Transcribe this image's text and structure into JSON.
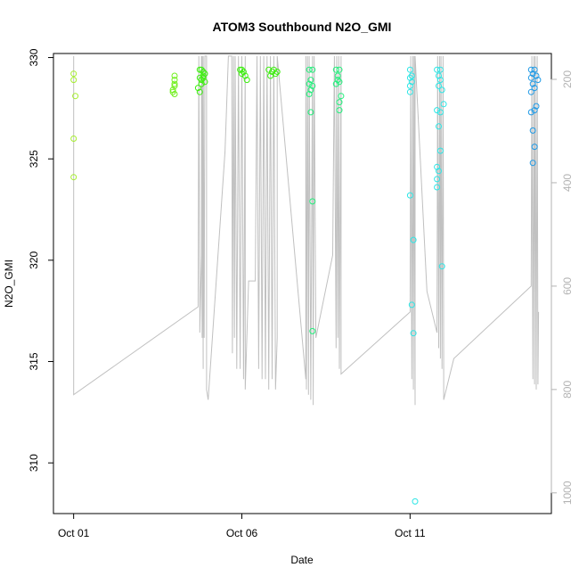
{
  "chart_data": {
    "type": "scatter",
    "title": "ATOM3 Southbound N2O_GMI",
    "xlabel": "Date",
    "ylabel": "N2O_GMI",
    "x_ticks": [
      {
        "label": "Oct 01",
        "value": 0
      },
      {
        "label": "Oct 06",
        "value": 5
      },
      {
        "label": "Oct 11",
        "value": 10
      }
    ],
    "xlim": [
      -0.6,
      14.2
    ],
    "ylim": [
      307.5,
      330.2
    ],
    "y_ticks": [
      310,
      315,
      320,
      325,
      330
    ],
    "y2_label": "",
    "y2_ticks": [
      200,
      400,
      600,
      800,
      1000
    ],
    "y2lim": [
      1040,
      150
    ],
    "colors": {
      "pressure_line": "#c0c0c0",
      "axis": "#000000",
      "right_axis": "#b3b3b3"
    },
    "series": [
      {
        "color": "#a6ef2e",
        "points": [
          [
            0.0,
            329.2
          ],
          [
            0.0,
            328.9
          ],
          [
            0.05,
            328.1
          ],
          [
            0.0,
            326.0
          ],
          [
            0.0,
            324.1
          ]
        ]
      },
      {
        "color": "#70ef1c",
        "points": [
          [
            3.0,
            329.1
          ],
          [
            3.0,
            328.9
          ],
          [
            3.0,
            328.7
          ],
          [
            3.0,
            328.6
          ],
          [
            2.95,
            328.4
          ],
          [
            2.95,
            328.3
          ],
          [
            3.0,
            328.2
          ]
        ]
      },
      {
        "color": "#3cf00e",
        "points": [
          [
            3.75,
            329.4
          ],
          [
            3.8,
            329.4
          ],
          [
            3.85,
            329.3
          ],
          [
            3.9,
            329.2
          ],
          [
            3.75,
            329.0
          ],
          [
            3.85,
            329.0
          ],
          [
            3.8,
            328.9
          ],
          [
            3.9,
            328.8
          ],
          [
            3.7,
            328.5
          ],
          [
            3.75,
            328.3
          ],
          [
            3.8,
            328.7
          ],
          [
            3.85,
            329.1
          ],
          [
            4.95,
            329.4
          ],
          [
            5.05,
            329.3
          ],
          [
            5.0,
            329.2
          ],
          [
            5.1,
            329.1
          ],
          [
            5.0,
            329.4
          ],
          [
            5.15,
            328.9
          ],
          [
            5.8,
            329.4
          ],
          [
            5.9,
            329.3
          ],
          [
            6.0,
            329.2
          ],
          [
            5.85,
            329.1
          ],
          [
            5.95,
            329.4
          ],
          [
            6.05,
            329.3
          ]
        ]
      },
      {
        "color": "#23f07c",
        "points": [
          [
            7.0,
            329.4
          ],
          [
            7.1,
            329.4
          ],
          [
            7.05,
            328.9
          ],
          [
            7.0,
            328.7
          ],
          [
            7.1,
            328.6
          ],
          [
            7.05,
            328.4
          ],
          [
            7.0,
            328.2
          ],
          [
            7.05,
            327.3
          ],
          [
            7.1,
            322.9
          ],
          [
            7.1,
            316.5
          ],
          [
            7.8,
            329.4
          ],
          [
            7.9,
            329.4
          ],
          [
            7.85,
            329.1
          ],
          [
            7.85,
            328.9
          ],
          [
            7.9,
            328.8
          ],
          [
            7.8,
            328.7
          ],
          [
            7.95,
            328.1
          ],
          [
            7.9,
            327.8
          ],
          [
            7.9,
            327.4
          ]
        ]
      },
      {
        "color": "#2ce6e6",
        "points": [
          [
            10.0,
            329.4
          ],
          [
            10.05,
            329.1
          ],
          [
            10.0,
            329.0
          ],
          [
            10.05,
            328.8
          ],
          [
            10.0,
            328.6
          ],
          [
            10.0,
            328.3
          ],
          [
            10.0,
            323.2
          ],
          [
            10.1,
            321.0
          ],
          [
            10.05,
            317.8
          ],
          [
            10.1,
            316.4
          ],
          [
            10.15,
            308.1
          ],
          [
            10.8,
            329.4
          ],
          [
            10.9,
            329.4
          ],
          [
            10.85,
            329.1
          ],
          [
            10.9,
            328.9
          ],
          [
            10.85,
            328.6
          ],
          [
            10.95,
            328.4
          ],
          [
            11.0,
            327.7
          ],
          [
            10.8,
            327.4
          ],
          [
            10.9,
            327.3
          ],
          [
            10.85,
            326.6
          ],
          [
            10.9,
            325.4
          ],
          [
            10.8,
            324.6
          ],
          [
            10.85,
            324.4
          ],
          [
            10.8,
            324.0
          ],
          [
            10.8,
            323.6
          ],
          [
            10.95,
            319.7
          ]
        ]
      },
      {
        "color": "#1f9ae6",
        "points": [
          [
            13.6,
            329.4
          ],
          [
            13.7,
            329.4
          ],
          [
            13.65,
            329.2
          ],
          [
            13.75,
            329.1
          ],
          [
            13.6,
            329.0
          ],
          [
            13.8,
            328.9
          ],
          [
            13.65,
            328.7
          ],
          [
            13.7,
            328.5
          ],
          [
            13.6,
            328.3
          ],
          [
            13.75,
            327.6
          ],
          [
            13.7,
            327.4
          ],
          [
            13.6,
            327.3
          ],
          [
            13.65,
            326.4
          ],
          [
            13.7,
            325.6
          ],
          [
            13.65,
            324.8
          ]
        ]
      }
    ],
    "pressure_line": [
      [
        0.0,
        155
      ],
      [
        0.0,
        810
      ],
      [
        3.7,
        640
      ],
      [
        3.72,
        155
      ],
      [
        3.72,
        155
      ],
      [
        3.75,
        620
      ],
      [
        3.75,
        690
      ],
      [
        3.8,
        540
      ],
      [
        3.8,
        155
      ],
      [
        3.82,
        700
      ],
      [
        3.82,
        155
      ],
      [
        3.85,
        760
      ],
      [
        3.85,
        155
      ],
      [
        3.88,
        700
      ],
      [
        3.9,
        155
      ],
      [
        3.95,
        155
      ],
      [
        3.95,
        800
      ],
      [
        4.0,
        820
      ],
      [
        4.5,
        340
      ],
      [
        4.6,
        155
      ],
      [
        4.7,
        155
      ],
      [
        4.72,
        730
      ],
      [
        4.75,
        155
      ],
      [
        4.78,
        700
      ],
      [
        4.8,
        155
      ],
      [
        4.85,
        760
      ],
      [
        4.9,
        155
      ],
      [
        4.95,
        760
      ],
      [
        5.0,
        155
      ],
      [
        5.05,
        780
      ],
      [
        5.1,
        155
      ],
      [
        5.1,
        800
      ],
      [
        5.2,
        590
      ],
      [
        5.4,
        590
      ],
      [
        5.45,
        155
      ],
      [
        5.5,
        760
      ],
      [
        5.55,
        155
      ],
      [
        5.6,
        780
      ],
      [
        5.65,
        155
      ],
      [
        5.7,
        780
      ],
      [
        5.75,
        155
      ],
      [
        5.8,
        800
      ],
      [
        5.85,
        155
      ],
      [
        5.9,
        780
      ],
      [
        5.95,
        155
      ],
      [
        6.0,
        800
      ],
      [
        6.05,
        700
      ],
      [
        6.05,
        155
      ],
      [
        6.9,
        780
      ],
      [
        6.9,
        155
      ],
      [
        6.92,
        800
      ],
      [
        6.95,
        155
      ],
      [
        6.98,
        810
      ],
      [
        7.0,
        155
      ],
      [
        7.05,
        820
      ],
      [
        7.1,
        155
      ],
      [
        7.12,
        830
      ],
      [
        7.15,
        155
      ],
      [
        7.2,
        700
      ],
      [
        7.7,
        540
      ],
      [
        7.75,
        155
      ],
      [
        7.8,
        720
      ],
      [
        7.82,
        155
      ],
      [
        7.85,
        700
      ],
      [
        7.88,
        155
      ],
      [
        7.9,
        760
      ],
      [
        7.95,
        155
      ],
      [
        7.95,
        770
      ],
      [
        10.0,
        650
      ],
      [
        10.02,
        155
      ],
      [
        10.05,
        780
      ],
      [
        10.08,
        155
      ],
      [
        10.1,
        800
      ],
      [
        10.12,
        155
      ],
      [
        10.15,
        830
      ],
      [
        10.15,
        155
      ],
      [
        10.5,
        610
      ],
      [
        10.8,
        690
      ],
      [
        10.82,
        155
      ],
      [
        10.85,
        720
      ],
      [
        10.88,
        155
      ],
      [
        10.9,
        740
      ],
      [
        10.92,
        155
      ],
      [
        10.95,
        760
      ],
      [
        10.98,
        155
      ],
      [
        11.0,
        770
      ],
      [
        11.0,
        820
      ],
      [
        11.3,
        740
      ],
      [
        13.6,
        600
      ],
      [
        13.62,
        155
      ],
      [
        13.65,
        780
      ],
      [
        13.68,
        155
      ],
      [
        13.7,
        790
      ],
      [
        13.72,
        155
      ],
      [
        13.75,
        800
      ],
      [
        13.78,
        155
      ],
      [
        13.8,
        790
      ],
      [
        13.82,
        650
      ]
    ]
  }
}
